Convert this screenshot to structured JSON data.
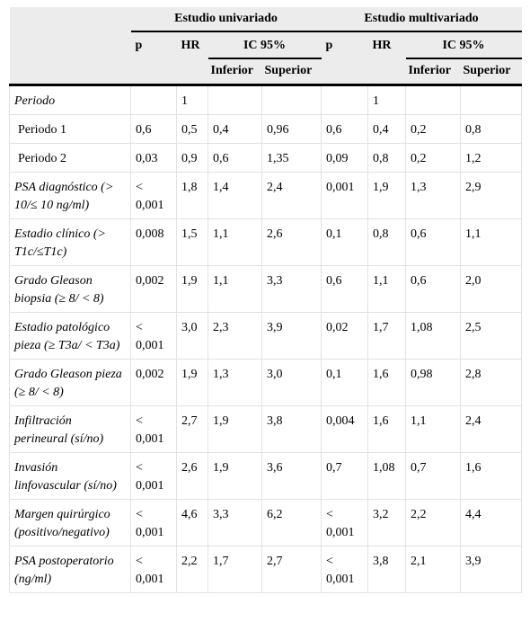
{
  "table": {
    "groups": [
      "Estudio univariado",
      "Estudio multivariado"
    ],
    "subheaders": [
      "p",
      "HR",
      "IC 95%"
    ],
    "bounds": [
      "Inferior",
      "Superior"
    ],
    "rows": [
      {
        "label": "Periodo",
        "italic": true,
        "cells": [
          null,
          "1",
          null,
          null,
          null,
          "1",
          null,
          null
        ]
      },
      {
        "label": "Periodo 1",
        "italic": false,
        "cells": [
          "0,6",
          "0,5",
          "0,4",
          "0,96",
          "0,6",
          "0,4",
          "0,2",
          "0,8"
        ]
      },
      {
        "label": "Periodo 2",
        "italic": false,
        "cells": [
          "0,03",
          "0,9",
          "0,6",
          "1,35",
          "0,09",
          "0,8",
          "0,2",
          "1,2"
        ]
      },
      {
        "label": "PSA diagnóstico (> 10/≤ 10 ng/ml)",
        "italic": true,
        "cells": [
          "< 0,001",
          "1,8",
          "1,4",
          "2,4",
          "0,001",
          "1,9",
          "1,3",
          "2,9"
        ]
      },
      {
        "label": "Estadio clínico (> T1c/≤T1c)",
        "italic": true,
        "cells": [
          "0,008",
          "1,5",
          "1,1",
          "2,6",
          "0,1",
          "0,8",
          "0,6",
          "1,1"
        ]
      },
      {
        "label": "Grado Gleason biopsia (≥ 8/ < 8)",
        "italic": true,
        "cells": [
          "0,002",
          "1,9",
          "1,1",
          "3,3",
          "0,6",
          "1,1",
          "0,6",
          "2,0"
        ]
      },
      {
        "label": "Estadio patológico pieza (≥ T3a/ < T3a)",
        "italic": true,
        "cells": [
          "< 0,001",
          "3,0",
          "2,3",
          "3,9",
          "0,02",
          "1,7",
          "1,08",
          "2,5"
        ]
      },
      {
        "label": "Grado Gleason pieza (≥ 8/ < 8)",
        "italic": true,
        "cells": [
          "0,002",
          "1,9",
          "1,3",
          "3,0",
          "0,1",
          "1,6",
          "0,98",
          "2,8"
        ]
      },
      {
        "label": "Infiltración perineural (sí/no)",
        "italic": true,
        "cells": [
          "< 0,001",
          "2,7",
          "1,9",
          "3,8",
          "0,004",
          "1,6",
          "1,1",
          "2,4"
        ]
      },
      {
        "label": "Invasión linfovascular (sí/no)",
        "italic": true,
        "cells": [
          "< 0,001",
          "2,6",
          "1,9",
          "3,6",
          "0,7",
          "1,08",
          "0,7",
          "1,6"
        ]
      },
      {
        "label": "Margen quirúrgico (positivo/negativo)",
        "italic": true,
        "cells": [
          "< 0,001",
          "4,6",
          "3,3",
          "6,2",
          "< 0,001",
          "3,2",
          "2,2",
          "4,4"
        ]
      },
      {
        "label": "PSA postoperatorio (ng/ml)",
        "italic": true,
        "cells": [
          "< 0,001",
          "2,2",
          "1,7",
          "2,7",
          "< 0,001",
          "3,8",
          "2,1",
          "3,9"
        ]
      }
    ]
  }
}
